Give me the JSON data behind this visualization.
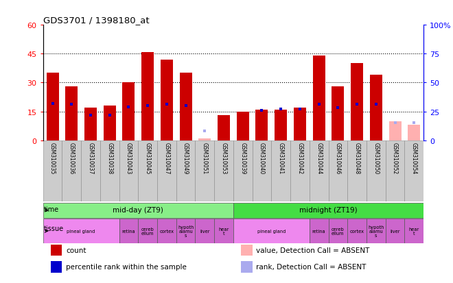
{
  "title": "GDS3701 / 1398180_at",
  "samples": [
    "GSM310035",
    "GSM310036",
    "GSM310037",
    "GSM310038",
    "GSM310043",
    "GSM310045",
    "GSM310047",
    "GSM310049",
    "GSM310051",
    "GSM310053",
    "GSM310039",
    "GSM310040",
    "GSM310041",
    "GSM310042",
    "GSM310044",
    "GSM310046",
    "GSM310048",
    "GSM310050",
    "GSM310052",
    "GSM310054"
  ],
  "count_values": [
    35,
    28,
    17,
    18,
    30,
    46,
    42,
    35,
    1,
    13,
    15,
    16,
    16,
    17,
    44,
    28,
    40,
    34,
    10,
    8
  ],
  "rank_values": [
    32,
    31,
    22,
    22,
    29,
    30,
    31,
    30,
    8,
    null,
    null,
    26,
    27,
    27,
    31,
    28,
    31,
    31,
    15,
    15
  ],
  "absent_count": [
    false,
    false,
    false,
    false,
    false,
    false,
    false,
    false,
    true,
    false,
    false,
    false,
    false,
    false,
    false,
    false,
    false,
    false,
    true,
    true
  ],
  "absent_rank": [
    false,
    false,
    false,
    false,
    false,
    false,
    false,
    false,
    true,
    false,
    false,
    false,
    false,
    false,
    false,
    false,
    false,
    false,
    true,
    true
  ],
  "ylim_left": [
    0,
    60
  ],
  "ylim_right": [
    0,
    100
  ],
  "yticks_left": [
    0,
    15,
    30,
    45,
    60
  ],
  "yticks_right": [
    0,
    25,
    50,
    75,
    100
  ],
  "ytick_labels_right": [
    "0",
    "25",
    "50",
    "75",
    "100%"
  ],
  "bar_color": "#cc0000",
  "bar_absent_color": "#ffb0b0",
  "rank_color": "#0000cc",
  "rank_absent_color": "#aaaaee",
  "time_groups": [
    {
      "label": "mid-day (ZT9)",
      "start": 0,
      "end": 9,
      "color": "#88ee88"
    },
    {
      "label": "midnight (ZT19)",
      "start": 10,
      "end": 19,
      "color": "#44dd44"
    }
  ],
  "tissue_groups": [
    {
      "label": "pineal gland",
      "start": 0,
      "end": 3,
      "color": "#ee88ee"
    },
    {
      "label": "retina",
      "start": 4,
      "end": 4,
      "color": "#cc66cc"
    },
    {
      "label": "cereb\nellum",
      "start": 5,
      "end": 5,
      "color": "#cc66cc"
    },
    {
      "label": "cortex",
      "start": 6,
      "end": 6,
      "color": "#cc66cc"
    },
    {
      "label": "hypoth\nalamu\ns",
      "start": 7,
      "end": 7,
      "color": "#cc66cc"
    },
    {
      "label": "liver",
      "start": 8,
      "end": 8,
      "color": "#cc66cc"
    },
    {
      "label": "hear\nt",
      "start": 9,
      "end": 9,
      "color": "#cc66cc"
    },
    {
      "label": "pineal gland",
      "start": 10,
      "end": 13,
      "color": "#ee88ee"
    },
    {
      "label": "retina",
      "start": 14,
      "end": 14,
      "color": "#cc66cc"
    },
    {
      "label": "cereb\nellum",
      "start": 15,
      "end": 15,
      "color": "#cc66cc"
    },
    {
      "label": "cortex",
      "start": 16,
      "end": 16,
      "color": "#cc66cc"
    },
    {
      "label": "hypoth\nalamu\ns",
      "start": 17,
      "end": 17,
      "color": "#cc66cc"
    },
    {
      "label": "liver",
      "start": 18,
      "end": 18,
      "color": "#cc66cc"
    },
    {
      "label": "hear\nt",
      "start": 19,
      "end": 19,
      "color": "#cc66cc"
    }
  ],
  "legend_items": [
    {
      "label": "count",
      "color": "#cc0000"
    },
    {
      "label": "percentile rank within the sample",
      "color": "#0000cc"
    },
    {
      "label": "value, Detection Call = ABSENT",
      "color": "#ffb0b0"
    },
    {
      "label": "rank, Detection Call = ABSENT",
      "color": "#aaaaee"
    }
  ]
}
